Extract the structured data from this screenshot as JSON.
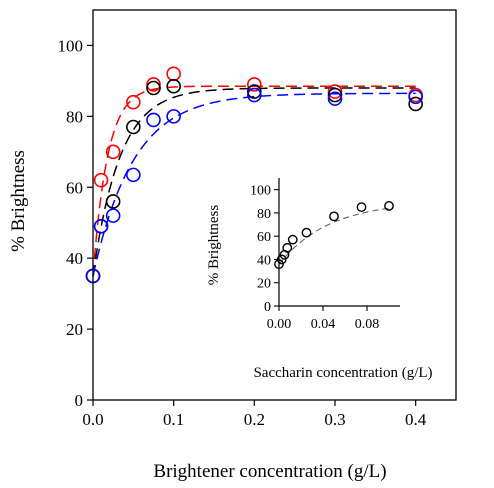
{
  "chart_data": [
    {
      "type": "scatter",
      "xlabel": "Brightener concentration (g/L)",
      "ylabel": "% Brightness",
      "xlim": [
        0,
        0.45
      ],
      "ylim": [
        0,
        110
      ],
      "xticks": [
        0.0,
        0.1,
        0.2,
        0.3,
        0.4
      ],
      "xtick_labels": [
        "0.0",
        "0.1",
        "0.2",
        "0.3",
        "0.4"
      ],
      "yticks": [
        0,
        20,
        40,
        60,
        80,
        100
      ],
      "ytick_labels": [
        "0",
        "20",
        "40",
        "60",
        "80",
        "100"
      ],
      "grid": false,
      "series": [
        {
          "color": "#ff0000",
          "marker": "open-circle",
          "x": [
            0.0,
            0.01,
            0.025,
            0.05,
            0.075,
            0.1,
            0.2,
            0.3,
            0.4
          ],
          "y": [
            35,
            62,
            70,
            84,
            89,
            92,
            89,
            87,
            86
          ],
          "fit": {
            "type": "exponential-rise",
            "y0": 35,
            "ymax": 88.5,
            "rate": 55
          }
        },
        {
          "color": "#000000",
          "marker": "open-circle",
          "x": [
            0.0,
            0.01,
            0.025,
            0.05,
            0.075,
            0.1,
            0.2,
            0.3,
            0.4
          ],
          "y": [
            35,
            49,
            56,
            77,
            88,
            88.5,
            87,
            86,
            83.5
          ],
          "fit": {
            "type": "exponential-rise",
            "y0": 35,
            "ymax": 88,
            "rate": 30
          }
        },
        {
          "color": "#0000ff",
          "marker": "open-circle",
          "x": [
            0.0,
            0.01,
            0.025,
            0.05,
            0.075,
            0.1,
            0.2,
            0.3,
            0.4
          ],
          "y": [
            35,
            49,
            52,
            63.5,
            79,
            80,
            86,
            85,
            85.5
          ],
          "fit": {
            "type": "exponential-rise",
            "y0": 35,
            "ymax": 86.5,
            "rate": 20
          }
        }
      ]
    },
    {
      "type": "scatter",
      "xlabel": "Saccharin concentration (g/L)",
      "ylabel": "% Brightness",
      "xlim": [
        0,
        0.11
      ],
      "ylim": [
        0,
        110
      ],
      "xticks": [
        0.0,
        0.04,
        0.08
      ],
      "xtick_labels": [
        "0.00",
        "0.04",
        "0.08"
      ],
      "yticks": [
        0,
        20,
        40,
        60,
        80,
        100
      ],
      "ytick_labels": [
        "0",
        "20",
        "40",
        "60",
        "80",
        "100"
      ],
      "grid": false,
      "series": [
        {
          "color": "#000000",
          "marker": "open-circle",
          "x": [
            0.0,
            0.0025,
            0.005,
            0.0075,
            0.0125,
            0.025,
            0.05,
            0.075,
            0.1
          ],
          "y": [
            36,
            40,
            44,
            50,
            57,
            63,
            77,
            85,
            86
          ],
          "fit": {
            "type": "exponential-rise",
            "y0": 36,
            "ymax": 90,
            "rate": 22
          }
        }
      ]
    }
  ]
}
